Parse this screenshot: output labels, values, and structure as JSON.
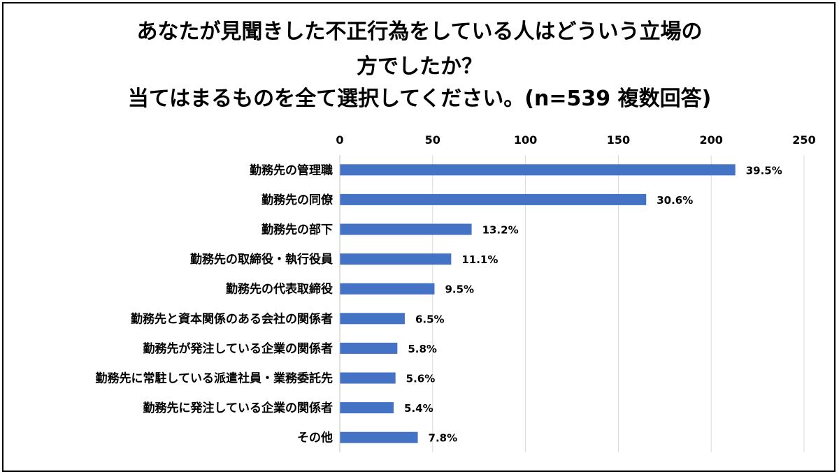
{
  "chart_data": {
    "type": "bar",
    "orientation": "horizontal",
    "title_lines": [
      "あなたが見聞きした不正行為をしている人はどういう立場の",
      "方でしたか？",
      "当てはまるものを全て選択してください。(n=539 複数回答)"
    ],
    "categories": [
      "勤務先の管理職",
      "勤務先の同僚",
      "勤務先の部下",
      "勤務先の取締役・執行役員",
      "勤務先の代表取締役",
      "勤務先と資本関係のある会社の関係者",
      "勤務先が発注している企業の関係者",
      "勤務先に常駐している派遣社員・業務委託先",
      "勤務先に発注している企業の関係者",
      "その他"
    ],
    "values": [
      213,
      165,
      71,
      60,
      51,
      35,
      31,
      30,
      29,
      42
    ],
    "data_labels": [
      "39.5%",
      "30.6%",
      "13.2%",
      "11.1%",
      "9.5%",
      "6.5%",
      "5.8%",
      "5.6%",
      "5.4%",
      "7.8%"
    ],
    "xlim": [
      0,
      250
    ],
    "x_ticks": [
      0,
      50,
      100,
      150,
      200,
      250
    ],
    "x_tick_labels": [
      "0",
      "50",
      "100",
      "150",
      "200",
      "250"
    ],
    "x_axis_position": "top",
    "grid": true,
    "legend": "none",
    "bar_color": "#4472c4",
    "grid_color": "#d9d9d9"
  }
}
